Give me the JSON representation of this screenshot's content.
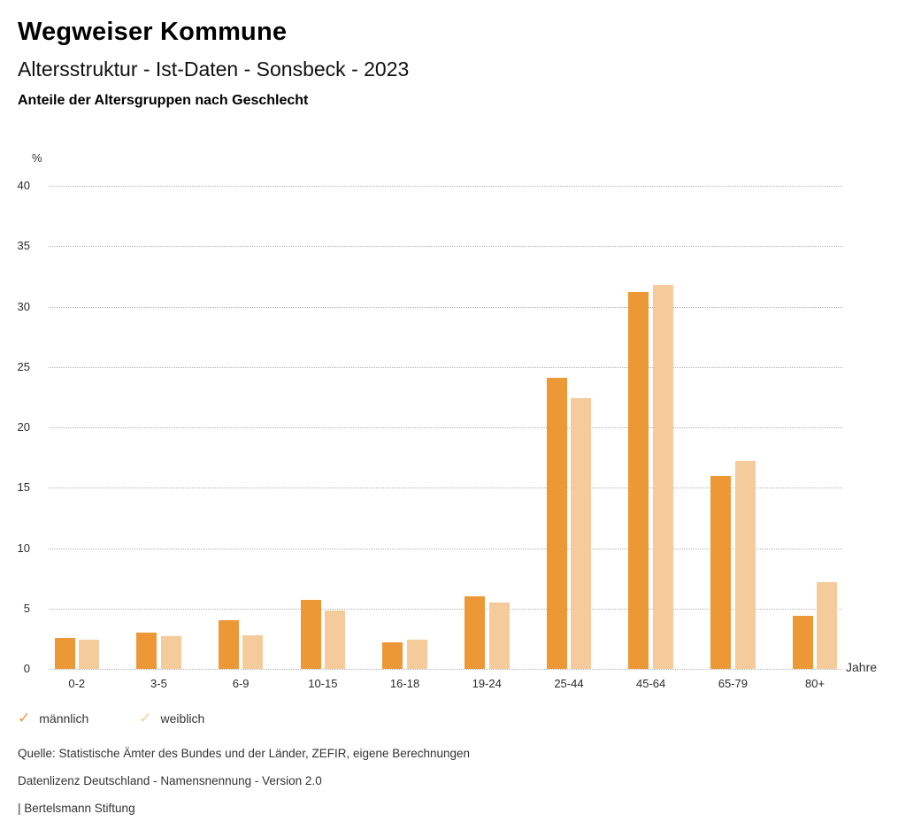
{
  "header": {
    "brand": "Wegweiser Kommune",
    "title": "Altersstruktur - Ist-Daten - Sonsbeck - 2023",
    "subtitle": "Anteile der Altersgruppen nach Geschlecht"
  },
  "chart_data": {
    "type": "bar",
    "title": "Anteile der Altersgruppen nach Geschlecht",
    "categories": [
      "0-2",
      "3-5",
      "6-9",
      "10-15",
      "16-18",
      "19-24",
      "25-44",
      "45-64",
      "65-79",
      "80+"
    ],
    "series": [
      {
        "name": "männlich",
        "color": "#ED9837",
        "values": [
          2.6,
          3.0,
          4.0,
          5.7,
          2.2,
          6.0,
          24.1,
          31.2,
          16.0,
          4.4
        ]
      },
      {
        "name": "weiblich",
        "color": "#F5CB9B",
        "values": [
          2.4,
          2.7,
          2.8,
          4.8,
          2.4,
          5.5,
          22.4,
          31.8,
          17.2,
          7.2
        ]
      }
    ],
    "ylabel": "%",
    "xlabel": "Jahre",
    "ylim": [
      0,
      40
    ],
    "ytick_step": 5,
    "grid": "horizontal dotted",
    "legend_position": "bottom-left",
    "legend_marker": "checkmark"
  },
  "footer": {
    "source": "Quelle: Statistische Ämter des Bundes und der Länder, ZEFIR, eigene Berechnungen",
    "license": "Datenlizenz Deutschland - Namensnennung - Version 2.0",
    "attribution": "| Bertelsmann Stiftung"
  }
}
